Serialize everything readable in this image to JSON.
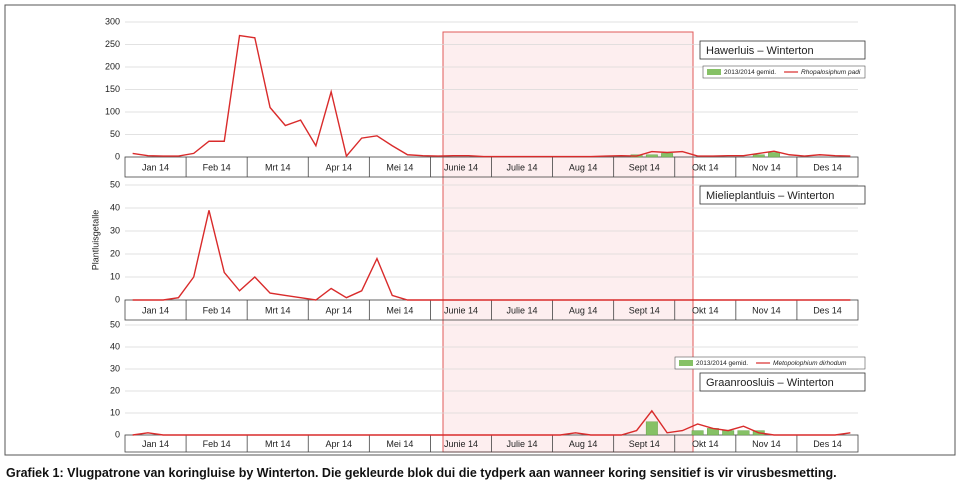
{
  "y_axis_label": "Plantluisgetalle",
  "caption": "Grafiek 1: Vlugpatrone van koringluise by Winterton. Die gekleurde blok dui die tydperk aan wanneer koring sensitief is vir virusbesmetting.",
  "chart_data": [
    {
      "type": "line",
      "title": "Hawerluis – Winterton",
      "categories": [
        "Jan 14",
        null,
        null,
        null,
        "Feb 14",
        null,
        null,
        null,
        "Mrt 14",
        null,
        null,
        null,
        "Apr 14",
        null,
        null,
        null,
        "Mei 14",
        null,
        null,
        null,
        "Junie 14",
        null,
        null,
        null,
        "Julie 14",
        null,
        null,
        null,
        "Aug 14",
        null,
        null,
        null,
        "Sept 14",
        null,
        null,
        null,
        "Okt 14",
        null,
        null,
        null,
        "Nov 14",
        null,
        null,
        null,
        "Des 14",
        null,
        null,
        null
      ],
      "ylim": [
        0,
        300
      ],
      "yticks": [
        0,
        50,
        100,
        150,
        200,
        250,
        300
      ],
      "grid": true,
      "legend": true,
      "series": [
        {
          "name": "2013/2014 gemid.",
          "type": "bar",
          "color": "#86c166",
          "values": [
            0,
            0,
            0,
            0,
            0,
            0,
            0,
            0,
            0,
            0,
            0,
            0,
            0,
            0,
            0,
            0,
            0,
            0,
            0,
            0,
            0,
            0,
            0,
            0,
            0,
            0,
            0,
            0,
            0,
            0,
            0,
            0,
            0,
            5,
            5,
            8,
            0,
            0,
            0,
            0,
            0,
            5,
            10,
            0,
            0,
            0,
            0,
            0
          ]
        },
        {
          "name": "Rhopalosiphum padi",
          "type": "line",
          "color": "#d92b2b",
          "values": [
            8,
            3,
            2,
            2,
            8,
            35,
            35,
            270,
            265,
            110,
            70,
            82,
            25,
            145,
            2,
            42,
            47,
            25,
            5,
            3,
            2,
            3,
            3,
            1,
            1,
            1,
            1,
            1,
            1,
            1,
            1,
            2,
            3,
            2,
            12,
            10,
            12,
            2,
            2,
            3,
            3,
            8,
            13,
            5,
            2,
            5,
            3,
            2
          ]
        }
      ]
    },
    {
      "type": "line",
      "title": "Mielieplantluis – Winterton",
      "categories": [
        "Jan 14",
        null,
        null,
        null,
        "Feb 14",
        null,
        null,
        null,
        "Mrt 14",
        null,
        null,
        null,
        "Apr 14",
        null,
        null,
        null,
        "Mei 14",
        null,
        null,
        null,
        "Junie 14",
        null,
        null,
        null,
        "Julie 14",
        null,
        null,
        null,
        "Aug 14",
        null,
        null,
        null,
        "Sept 14",
        null,
        null,
        null,
        "Okt 14",
        null,
        null,
        null,
        "Nov 14",
        null,
        null,
        null,
        "Des 14",
        null,
        null,
        null
      ],
      "ylim": [
        0,
        50
      ],
      "yticks": [
        0,
        10,
        20,
        30,
        40,
        50
      ],
      "grid": true,
      "legend": false,
      "series": [
        {
          "type": "line",
          "color": "#d92b2b",
          "values": [
            0,
            0,
            0,
            1,
            10,
            39,
            12,
            4,
            10,
            3,
            2,
            1,
            0,
            5,
            1,
            4,
            18,
            2,
            0,
            0,
            0,
            0,
            0,
            0,
            0,
            0,
            0,
            0,
            0,
            0,
            0,
            0,
            0,
            0,
            0,
            0,
            0,
            0,
            0,
            0,
            0,
            0,
            0,
            0,
            0,
            0,
            0,
            0
          ]
        }
      ]
    },
    {
      "type": "line",
      "title": "Graanroosluis – Winterton",
      "categories": [
        "Jan 14",
        null,
        null,
        null,
        "Feb 14",
        null,
        null,
        null,
        "Mrt 14",
        null,
        null,
        null,
        "Apr 14",
        null,
        null,
        null,
        "Mei 14",
        null,
        null,
        null,
        "Junie 14",
        null,
        null,
        null,
        "Julie 14",
        null,
        null,
        null,
        "Aug 14",
        null,
        null,
        null,
        "Sept 14",
        null,
        null,
        null,
        "Okt 14",
        null,
        null,
        null,
        "Nov 14",
        null,
        null,
        null,
        "Des 14",
        null,
        null,
        null
      ],
      "ylim": [
        0,
        50
      ],
      "yticks": [
        0,
        10,
        20,
        30,
        40,
        50
      ],
      "grid": true,
      "legend": true,
      "series": [
        {
          "name": "2013/2014 gemid.",
          "type": "bar",
          "color": "#86c166",
          "values": [
            0,
            0,
            0,
            0,
            0,
            0,
            0,
            0,
            0,
            0,
            0,
            0,
            0,
            0,
            0,
            0,
            0,
            0,
            0,
            0,
            0,
            0,
            0,
            0,
            0,
            0,
            0,
            0,
            0,
            0,
            0,
            0,
            0,
            0,
            6,
            0,
            0,
            2,
            3,
            2,
            2,
            2,
            0,
            0,
            0,
            0,
            0,
            0
          ]
        },
        {
          "name": "Metopolophium dirhodum",
          "type": "line",
          "color": "#d92b2b",
          "values": [
            0,
            1,
            0,
            0,
            0,
            0,
            0,
            0,
            0,
            0,
            0,
            0,
            0,
            0,
            0,
            0,
            0,
            0,
            0,
            0,
            0,
            0,
            0,
            0,
            0,
            0,
            0,
            0,
            0,
            1,
            0,
            0,
            0,
            2,
            11,
            1,
            2,
            5,
            3,
            2,
            4,
            1,
            0,
            0,
            0,
            0,
            0,
            1
          ]
        }
      ]
    }
  ]
}
